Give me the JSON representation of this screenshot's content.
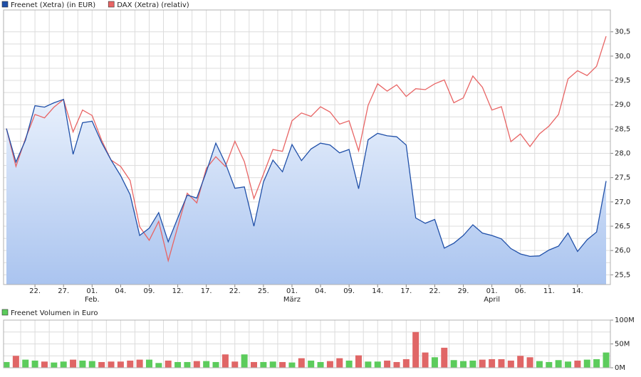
{
  "chart_data": [
    {
      "type": "line",
      "categories": [
        null,
        null,
        null,
        "22.",
        null,
        null,
        "27.",
        null,
        null,
        "01.",
        null,
        null,
        "04.",
        null,
        null,
        "09.",
        null,
        null,
        "12.",
        null,
        null,
        "17.",
        null,
        null,
        "22.",
        null,
        null,
        "25.",
        null,
        null,
        "01.",
        null,
        null,
        "04.",
        null,
        null,
        "09.",
        null,
        null,
        "14.",
        null,
        null,
        "17.",
        null,
        null,
        "22.",
        null,
        null,
        "29.",
        null,
        null,
        "01.",
        null,
        null,
        "06.",
        null,
        null,
        "11.",
        null,
        null,
        "14.",
        null,
        null,
        null
      ],
      "month_labels": [
        null,
        null,
        null,
        null,
        null,
        null,
        null,
        null,
        null,
        "Feb.",
        null,
        null,
        null,
        null,
        null,
        null,
        null,
        null,
        null,
        null,
        null,
        null,
        null,
        null,
        null,
        null,
        null,
        null,
        null,
        null,
        "März",
        null,
        null,
        null,
        null,
        null,
        null,
        null,
        null,
        null,
        null,
        null,
        null,
        null,
        null,
        null,
        null,
        null,
        null,
        null,
        null,
        "April",
        null,
        null,
        null,
        null,
        null,
        null,
        null,
        null,
        null,
        null,
        null,
        null
      ],
      "series": [
        {
          "name": "Freenet (Xetra) (in EUR)",
          "color": "#1f4fa8",
          "fill": true,
          "values": [
            28.51,
            27.82,
            28.27,
            28.98,
            28.95,
            29.04,
            29.11,
            27.98,
            28.63,
            28.66,
            28.22,
            27.86,
            27.54,
            27.15,
            26.31,
            26.46,
            26.78,
            26.18,
            26.67,
            27.14,
            27.08,
            27.62,
            28.21,
            27.8,
            27.28,
            27.31,
            26.5,
            27.41,
            27.86,
            27.62,
            28.18,
            27.85,
            28.09,
            28.21,
            28.17,
            28.01,
            28.08,
            27.27,
            28.28,
            28.41,
            28.36,
            28.34,
            28.17,
            26.67,
            26.56,
            26.64,
            26.05,
            26.15,
            26.31,
            26.53,
            26.36,
            26.31,
            26.24,
            26.04,
            25.93,
            25.88,
            25.89,
            26.01,
            26.09,
            26.36,
            25.98,
            26.22,
            26.38,
            27.43
          ]
        },
        {
          "name": "DAX (Xetra) (relativ)",
          "color": "#e86464",
          "fill": false,
          "values": [
            28.51,
            27.73,
            28.3,
            28.8,
            28.73,
            28.95,
            29.11,
            28.44,
            28.89,
            28.78,
            28.27,
            27.86,
            27.73,
            27.44,
            26.49,
            26.21,
            26.6,
            25.79,
            26.49,
            27.18,
            26.98,
            27.69,
            27.93,
            27.73,
            28.25,
            27.83,
            27.07,
            27.57,
            28.08,
            28.04,
            28.67,
            28.83,
            28.76,
            28.96,
            28.85,
            28.6,
            28.67,
            28.05,
            28.99,
            29.43,
            29.28,
            29.41,
            29.17,
            29.33,
            29.31,
            29.43,
            29.51,
            29.04,
            29.14,
            29.59,
            29.36,
            28.89,
            28.96,
            28.24,
            28.4,
            28.14,
            28.4,
            28.56,
            28.8,
            29.53,
            29.7,
            29.6,
            29.79,
            30.41
          ]
        }
      ],
      "ylim": [
        25.3,
        30.95
      ],
      "yticks": [
        {
          "value": 25.5,
          "label": "25,5"
        },
        {
          "value": 26,
          "label": "26,0"
        },
        {
          "value": 26.5,
          "label": "26,5"
        },
        {
          "value": 27,
          "label": "27,0"
        },
        {
          "value": 27.5,
          "label": "27,5"
        },
        {
          "value": 28,
          "label": "28,0"
        },
        {
          "value": 28.5,
          "label": "28,5"
        },
        {
          "value": 29,
          "label": "29,0"
        },
        {
          "value": 29.5,
          "label": "29,5"
        },
        {
          "value": 30,
          "label": "30,0"
        },
        {
          "value": 30.5,
          "label": "30,5"
        }
      ],
      "grid": true
    },
    {
      "type": "bar",
      "name": "Freenet Volumen in Euro",
      "legend_color": "#5ccc5c",
      "up_color": "#5ccc5c",
      "down_color": "#e06666",
      "values": [
        12,
        25,
        17,
        15,
        13,
        11,
        13,
        17,
        15,
        14,
        12,
        13,
        13,
        15,
        17,
        17,
        10,
        15,
        12,
        12,
        14,
        14,
        12,
        28,
        13,
        28,
        12,
        12,
        13,
        12,
        11,
        20,
        15,
        12,
        14,
        20,
        15,
        26,
        13,
        13,
        15,
        12,
        18,
        75,
        32,
        22,
        42,
        16,
        14,
        15,
        17,
        18,
        18,
        15,
        25,
        22,
        14,
        12,
        16,
        13,
        15,
        17,
        18,
        32
      ],
      "ylim": [
        0,
        100
      ],
      "yticks": [
        {
          "value": 0,
          "label": "0M"
        },
        {
          "value": 50,
          "label": "50M"
        },
        {
          "value": 100,
          "label": "100M"
        }
      ],
      "grid": true
    }
  ]
}
